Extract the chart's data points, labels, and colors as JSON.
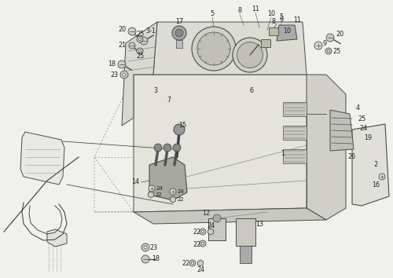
{
  "bg_color": "#f0f0ec",
  "line_color": "#4a4a4a",
  "text_color": "#222222",
  "dashed_color": "#888888",
  "part_gray": "#c8c8c0",
  "shadow_gray": "#b0b0a8"
}
